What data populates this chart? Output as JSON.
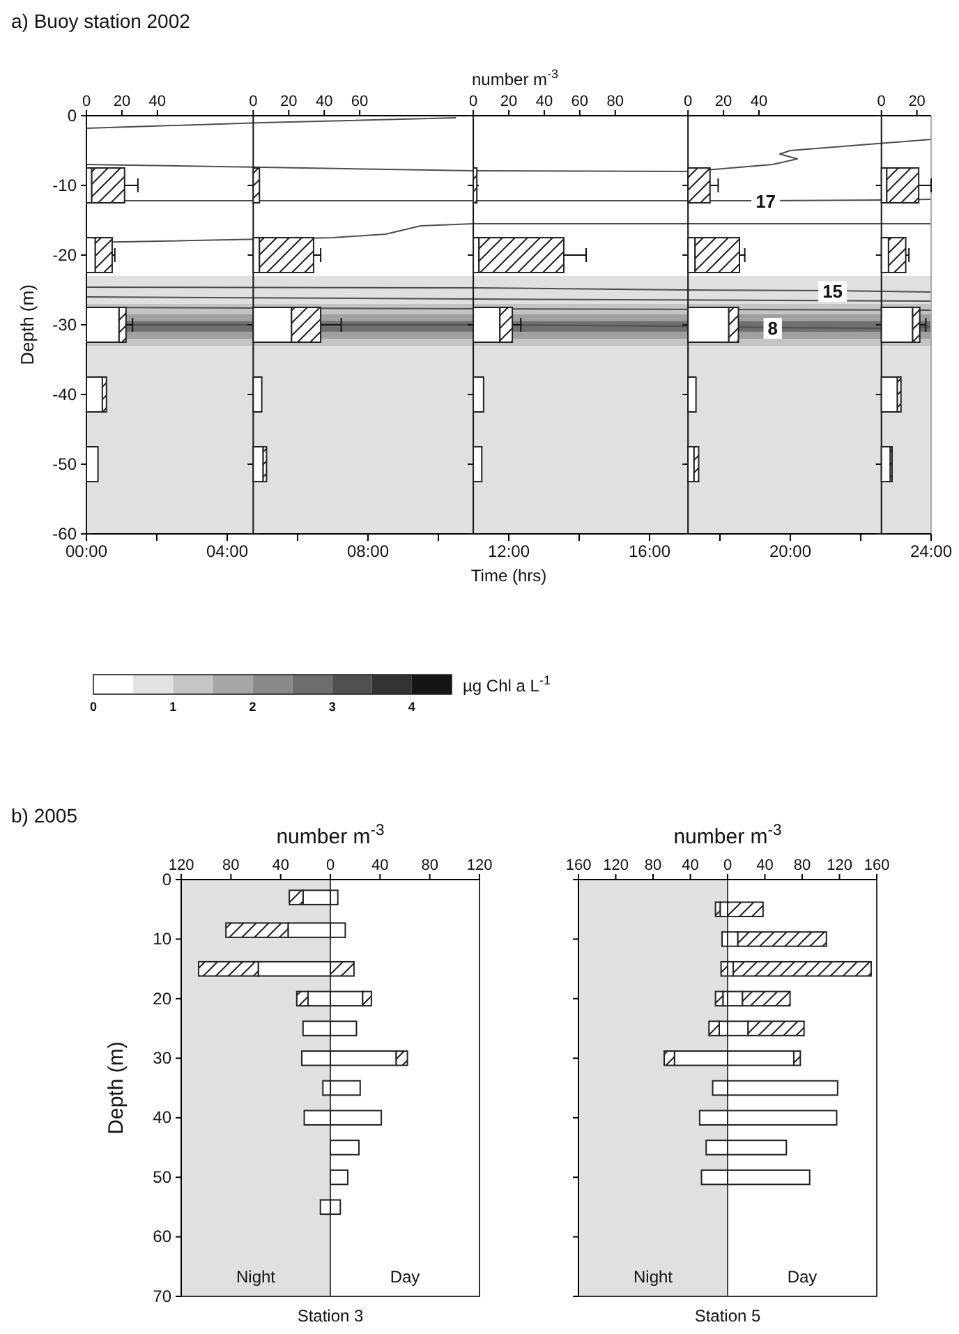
{
  "chart_data": [
    {
      "type": "line",
      "title": "a)  Buoy station 2002",
      "xlabel": "Time (hrs)",
      "ylabel": "Depth (m)",
      "xlim": [
        0,
        24
      ],
      "ylim": [
        -60,
        0
      ],
      "xticks": [
        {
          "value": 0,
          "label": "00:00"
        },
        {
          "value": 2,
          "label": null
        },
        {
          "value": 4,
          "label": "04:00"
        },
        {
          "value": 6,
          "label": null
        },
        {
          "value": 8,
          "label": "08:00"
        },
        {
          "value": 10,
          "label": null
        },
        {
          "value": 12,
          "label": "12:00"
        },
        {
          "value": 14,
          "label": null
        },
        {
          "value": 16,
          "label": "16:00"
        },
        {
          "value": 18,
          "label": null
        },
        {
          "value": 20,
          "label": "20:00"
        },
        {
          "value": 22,
          "label": null
        },
        {
          "value": 24,
          "label": "24:00"
        }
      ],
      "yticks": [
        0,
        -10,
        -20,
        -30,
        -40,
        -50,
        -60
      ],
      "bands": [
        {
          "axis": "y",
          "from": -60,
          "to": -23,
          "color": "#e0e0e0"
        },
        {
          "axis": "y",
          "from": -33,
          "to": -27,
          "color": "#c4c4c4"
        },
        {
          "axis": "y",
          "from": -32,
          "to": -28.5,
          "color": "#a0a0a0"
        },
        {
          "axis": "y",
          "from": -31,
          "to": -29.5,
          "color": "#707070"
        }
      ],
      "clim": [
        0,
        4.5
      ],
      "cticks": [
        0,
        1,
        2,
        3,
        4
      ],
      "clabel": "µg Chl a L$^{-1}$",
      "series": [
        {
          "color": "#4d4d4d",
          "x": [
            0,
            5,
            10.5
          ],
          "values": [
            -1.8,
            -1,
            -0.3
          ]
        },
        {
          "color": "#4d4d4d",
          "x": [
            0,
            5,
            11,
            17.1,
            19.5,
            20.2,
            19.7,
            20,
            24
          ],
          "values": [
            -7,
            -7.4,
            -7.9,
            -8,
            -7,
            -6.2,
            -5.5,
            -5,
            -3.4
          ]
        },
        {
          "name": "17",
          "color": "#4d4d4d",
          "x": [
            0,
            11,
            19.3,
            22.6,
            24
          ],
          "values": [
            -12.2,
            -12.2,
            -12.2,
            -12.1,
            -12
          ]
        },
        {
          "color": "#4d4d4d",
          "x": [
            0,
            7,
            8.5,
            9.5,
            11,
            17,
            24
          ],
          "values": [
            -18.2,
            -17.5,
            -17,
            -15.8,
            -15.5,
            -15.5,
            -15.5
          ]
        },
        {
          "name": "15",
          "color": "#4d4d4d",
          "x": [
            0,
            11,
            17,
            21.2,
            22.6,
            24
          ],
          "values": [
            -24.6,
            -24.7,
            -25,
            -25.1,
            -25.2,
            -25.3
          ]
        },
        {
          "color": "#4d4d4d",
          "x": [
            0,
            11,
            24
          ],
          "values": [
            -26,
            -26.3,
            -26.6
          ]
        },
        {
          "color": "#4d4d4d",
          "x": [
            0,
            11,
            24
          ],
          "values": [
            -27.5,
            -27.7,
            -27.9
          ]
        },
        {
          "name": "8",
          "color": "#4d4d4d",
          "x": [
            0,
            11,
            17,
            19.5,
            22.6,
            24
          ],
          "values": [
            -30,
            -30,
            -30.2,
            -30.4,
            -30.5,
            -30.3
          ]
        }
      ]
    },
    {
      "type": "bar",
      "orientation": "horizontal",
      "stacked": true,
      "tick_labels": "x",
      "xlim": [
        0,
        94
      ],
      "xticks": [
        0,
        20,
        40
      ],
      "ylim": [
        -60,
        0
      ],
      "yticks": [
        0,
        -10,
        -20,
        -30,
        -40,
        -50,
        -60
      ],
      "x": [
        -10,
        -20,
        -30,
        -40,
        -50
      ],
      "series": [
        {
          "color": "#ffffff",
          "values": [
            3,
            5,
            18.4,
            9,
            6.5
          ]
        },
        {
          "color": "#222222",
          "values": [
            18.5,
            9.5,
            3.9,
            2.3,
            null
          ],
          "errors": [
            [
              21.5,
              29
            ],
            [
              14.5,
              16
            ],
            [
              22.3,
              26
            ],
            null,
            null
          ]
        }
      ]
    },
    {
      "type": "bar",
      "orientation": "horizontal",
      "stacked": true,
      "tick_labels": "x",
      "xlim": [
        0,
        124
      ],
      "xticks": [
        0,
        20,
        40,
        60
      ],
      "ylim": [
        -60,
        0
      ],
      "yticks": [
        0,
        -10,
        -20,
        -30,
        -40,
        -50,
        -60
      ],
      "x": [
        -10,
        -20,
        -30,
        -40,
        -50
      ],
      "series": [
        {
          "color": "#ffffff",
          "values": [
            null,
            3.5,
            21.6,
            4.8,
            5.6
          ]
        },
        {
          "color": "#222222",
          "values": [
            3.5,
            30.5,
            16.4,
            null,
            1.9
          ],
          "errors": [
            null,
            [
              34,
              38
            ],
            [
              38,
              49.6
            ],
            null,
            null
          ]
        }
      ]
    },
    {
      "type": "bar",
      "orientation": "horizontal",
      "stacked": true,
      "tick_labels": "x",
      "xlabel": "number m$^{-3}$",
      "xlim": [
        0,
        121
      ],
      "xticks": [
        0,
        20,
        40,
        60,
        80
      ],
      "ylim": [
        -60,
        0
      ],
      "yticks": [
        0,
        -10,
        -20,
        -30,
        -40,
        -50,
        -60
      ],
      "x": [
        -10,
        -20,
        -30,
        -40,
        -50
      ],
      "series": [
        {
          "color": "#ffffff",
          "values": [
            null,
            3.2,
            15,
            5.8,
            4.8
          ]
        },
        {
          "color": "#222222",
          "values": [
            2,
            47.8,
            7,
            null,
            null
          ],
          "errors": [
            null,
            [
              51,
              63.6
            ],
            [
              22,
              26.8
            ],
            null,
            null
          ]
        }
      ]
    },
    {
      "type": "bar",
      "orientation": "horizontal",
      "stacked": true,
      "tick_labels": "x",
      "xlim": [
        0,
        109
      ],
      "xticks": [
        0,
        20,
        40
      ],
      "ylim": [
        -60,
        0
      ],
      "yticks": [
        0,
        -10,
        -20,
        -30,
        -40,
        -50,
        -60
      ],
      "x": [
        -10,
        -20,
        -30,
        -40,
        -50
      ],
      "series": [
        {
          "color": "#ffffff",
          "values": [
            null,
            4,
            23,
            4.5,
            3.4
          ]
        },
        {
          "color": "#222222",
          "values": [
            12.4,
            25,
            5.4,
            null,
            2.6
          ],
          "errors": [
            [
              12.4,
              17
            ],
            [
              29,
              32
            ],
            null,
            null,
            null
          ]
        }
      ]
    },
    {
      "type": "bar",
      "orientation": "horizontal",
      "stacked": true,
      "tick_labels": "x",
      "xlim": [
        0,
        28
      ],
      "xticks": [
        0,
        20
      ],
      "ylim": [
        -60,
        0
      ],
      "yticks": [
        0,
        -10,
        -20,
        -30,
        -40,
        -50,
        -60
      ],
      "x": [
        -10,
        -20,
        -30,
        -40,
        -50
      ],
      "series": [
        {
          "color": "#ffffff",
          "values": [
            3,
            4,
            17.6,
            9,
            5
          ]
        },
        {
          "color": "#222222",
          "values": [
            18,
            9.7,
            4,
            2,
            1
          ],
          "errors": [
            [
              21,
              28
            ],
            [
              13.7,
              15.5
            ],
            [
              21.6,
              25
            ],
            null,
            null
          ]
        }
      ]
    },
    {
      "type": "bar",
      "orientation": "horizontal",
      "stacked": true,
      "title": "b)  2005",
      "xlabel": "number m$^{-3}$",
      "ylabel": "Depth (m)",
      "annotations": [
        "Station 3",
        "Day"
      ],
      "xlim": [
        -120,
        120
      ],
      "xticks": [
        {
          "value": -120,
          "label": "120"
        },
        {
          "value": -80,
          "label": "80"
        },
        {
          "value": -40,
          "label": "40"
        },
        0,
        40,
        80,
        120
      ],
      "ylim": [
        70,
        0
      ],
      "yticks": [
        0,
        10,
        20,
        30,
        40,
        50,
        60,
        70
      ],
      "x": [
        3,
        8.5,
        15,
        20,
        25,
        30,
        35,
        40,
        45,
        50,
        55
      ],
      "bands": [
        {
          "axis": "x",
          "from": -120,
          "to": 0,
          "color": "#e0e0e0",
          "label": "Night"
        }
      ],
      "series": [
        {
          "color": "#ffffff",
          "values": [
            -22,
            -34,
            -58,
            -18,
            -22,
            -23,
            -6,
            -21,
            null,
            null,
            -8
          ]
        },
        {
          "color": "#222222",
          "values": [
            -11,
            -50,
            -48,
            -9,
            null,
            null,
            null,
            null,
            null,
            null,
            null
          ]
        },
        {
          "color": "#ffffff",
          "values": [
            6,
            12,
            null,
            26,
            21,
            53,
            24,
            41,
            23,
            14,
            8
          ]
        },
        {
          "color": "#222222",
          "values": [
            null,
            null,
            19,
            7,
            null,
            9,
            null,
            null,
            null,
            null,
            null
          ]
        }
      ]
    },
    {
      "type": "bar",
      "orientation": "horizontal",
      "stacked": true,
      "tick_labels": "x",
      "xlabel": "number m$^{-3}$",
      "annotations": [
        "Station 5",
        "Day"
      ],
      "xlim": [
        -160,
        160
      ],
      "xticks": [
        {
          "value": -160,
          "label": "160"
        },
        {
          "value": -120,
          "label": "120"
        },
        {
          "value": -80,
          "label": "80"
        },
        {
          "value": -40,
          "label": "40"
        },
        0,
        40,
        80,
        120,
        160
      ],
      "ylim": [
        70,
        0
      ],
      "yticks": [
        0,
        10,
        20,
        30,
        40,
        50,
        60,
        70
      ],
      "x": [
        5,
        10,
        15,
        20,
        25,
        30,
        35,
        40,
        45,
        50
      ],
      "bands": [
        {
          "axis": "x",
          "from": -160,
          "to": 0,
          "color": "#e0e0e0",
          "label": "Night"
        }
      ],
      "series": [
        {
          "color": "#ffffff",
          "values": [
            -8,
            -6,
            null,
            -5,
            -9,
            -57,
            -16,
            -30,
            -23,
            -28
          ]
        },
        {
          "color": "#222222",
          "values": [
            -5,
            null,
            -7,
            -8,
            -11,
            -11,
            null,
            null,
            null,
            null
          ]
        },
        {
          "color": "#ffffff",
          "values": [
            null,
            11,
            6,
            16,
            22,
            71,
            118,
            117,
            63,
            88
          ]
        },
        {
          "color": "#222222",
          "values": [
            38,
            95,
            148,
            51,
            60,
            7,
            null,
            null,
            null,
            null
          ]
        }
      ]
    }
  ]
}
